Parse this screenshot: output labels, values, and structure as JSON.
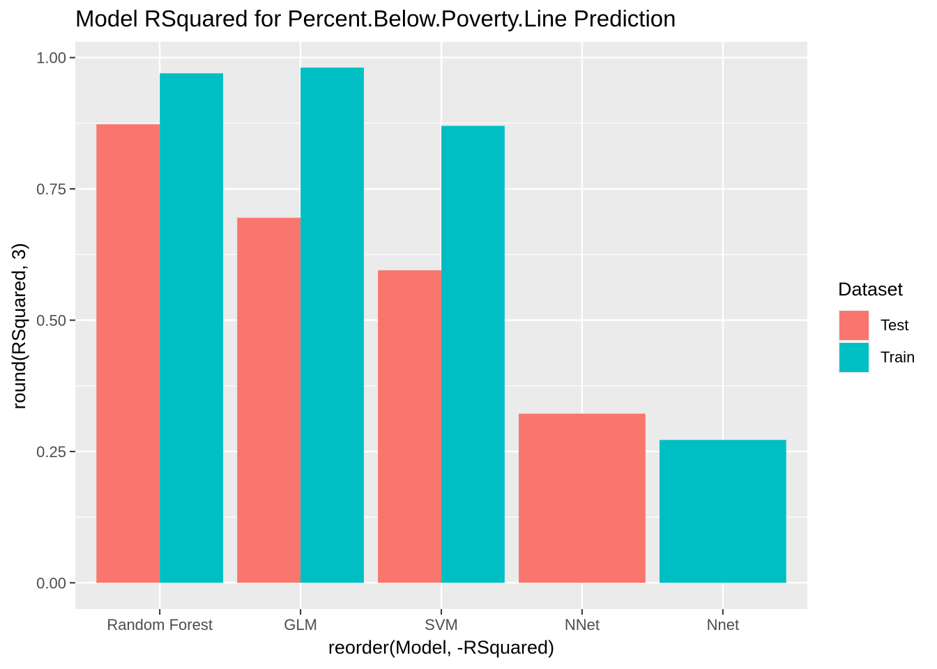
{
  "chart_data": {
    "type": "bar",
    "title": "Model RSquared for Percent.Below.Poverty.Line Prediction",
    "xlabel": "reorder(Model, -RSquared)",
    "ylabel": "round(RSquared, 3)",
    "categories": [
      "Random Forest",
      "GLM",
      "SVM",
      "NNet",
      "Nnet"
    ],
    "yticks": [
      "0.00",
      "0.25",
      "0.50",
      "0.75",
      "1.00"
    ],
    "ytick_values": [
      0,
      0.25,
      0.5,
      0.75,
      1.0
    ],
    "ylim": [
      -0.05,
      1.03
    ],
    "grid": true,
    "legend": {
      "title": "Dataset",
      "placement": "right"
    },
    "series": [
      {
        "name": "Test",
        "color": "#F8766D",
        "values": [
          0.873,
          0.695,
          0.595,
          0.322,
          null
        ]
      },
      {
        "name": "Train",
        "color": "#00BFC4",
        "values": [
          0.97,
          0.981,
          0.87,
          null,
          0.272
        ]
      }
    ]
  }
}
